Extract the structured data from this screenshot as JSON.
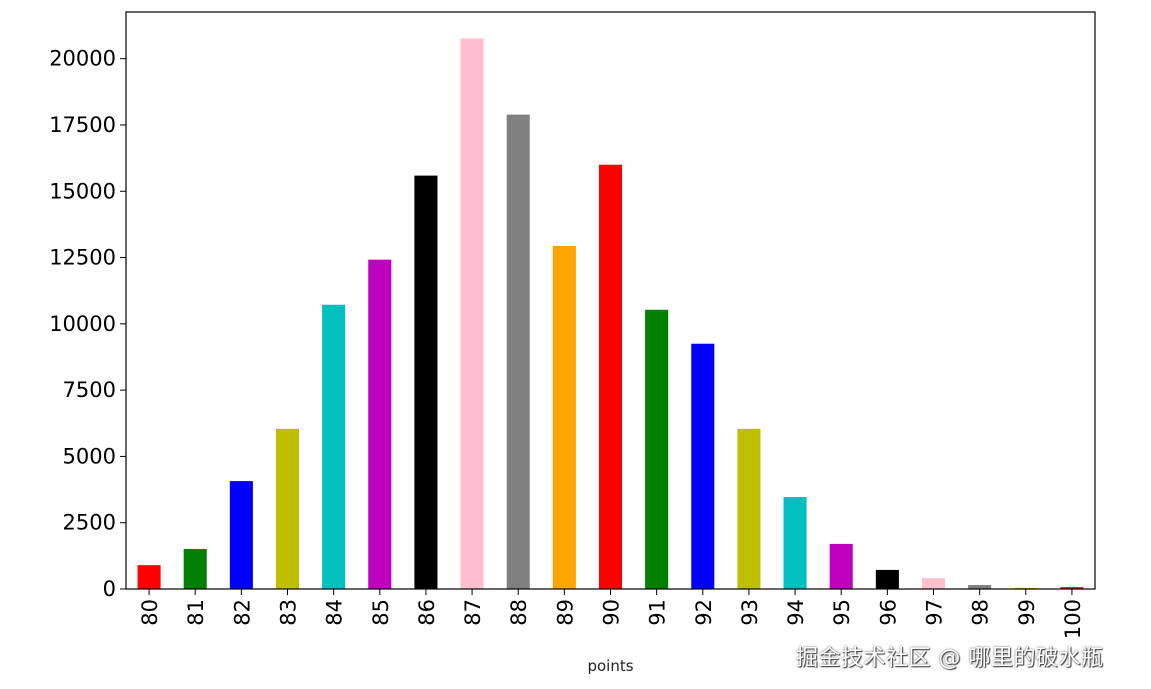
{
  "chart_data": {
    "type": "bar",
    "title": "",
    "xlabel": "points",
    "ylabel": "",
    "categories": [
      "80",
      "81",
      "82",
      "83",
      "84",
      "85",
      "86",
      "87",
      "88",
      "89",
      "90",
      "91",
      "92",
      "93",
      "94",
      "95",
      "96",
      "97",
      "98",
      "99",
      "100"
    ],
    "values": [
      900,
      1510,
      4070,
      6040,
      10720,
      12420,
      15590,
      20760,
      17890,
      12940,
      16000,
      10530,
      9250,
      6040,
      3470,
      1700,
      720,
      410,
      150,
      40,
      70
    ],
    "colors": [
      "#ff0000",
      "#008000",
      "#0000ff",
      "#bfbf00",
      "#00bfbf",
      "#bf00bf",
      "#000000",
      "#ffc0cb",
      "#808080",
      "#ffa500"
    ],
    "ylim": [
      0,
      21760
    ],
    "yticks": [
      0,
      2500,
      5000,
      7500,
      10000,
      12500,
      15000,
      17500,
      20000
    ],
    "ytick_labels": [
      "0",
      "2500",
      "5000",
      "7500",
      "10000",
      "12500",
      "15000",
      "17500",
      "20000"
    ],
    "xtick_rotation": 90,
    "grid": false,
    "legend": "none"
  },
  "watermark": "掘金技术社区 @ 哪里的破水瓶"
}
